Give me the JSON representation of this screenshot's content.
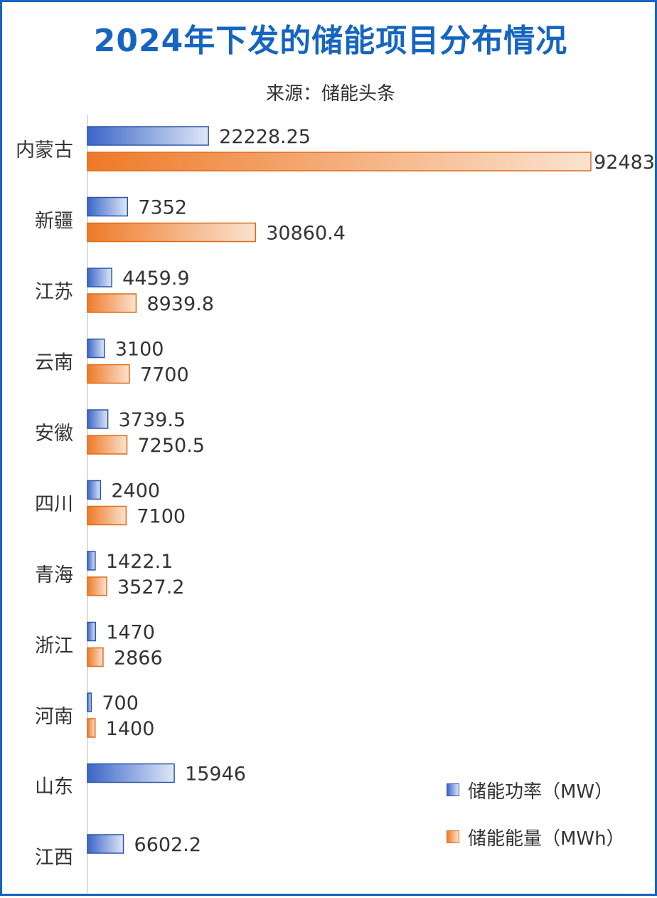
{
  "chart_data": {
    "type": "bar",
    "orientation": "horizontal",
    "title": "2024年下发的储能项目分布情况",
    "subtitle": "来源：储能头条",
    "categories": [
      "内蒙古",
      "新疆",
      "江苏",
      "云南",
      "安徽",
      "四川",
      "青海",
      "浙江",
      "河南",
      "山东",
      "江西"
    ],
    "series": [
      {
        "name": "储能功率（MW）",
        "values": [
          22228.25,
          7352,
          4459.9,
          3100,
          3739.5,
          2400,
          1422.1,
          1470,
          700,
          15946,
          6602.2
        ],
        "labels": [
          "22228.25",
          "7352",
          "4459.9",
          "3100",
          "3739.5",
          "2400",
          "1422.1",
          "1470",
          "700",
          "15946",
          "6602.2"
        ],
        "color": "#4472c4"
      },
      {
        "name": "储能能量（MWh）",
        "values": [
          92483,
          30860.4,
          8939.8,
          7700,
          7250.5,
          7100,
          3527.2,
          2866,
          1400,
          null,
          null
        ],
        "labels": [
          "92483",
          "30860.4",
          "8939.8",
          "7700",
          "7250.5",
          "7100",
          "3527.2",
          "2866",
          "1400",
          "",
          ""
        ],
        "color": "#ed7d31"
      }
    ],
    "xlim": [
      0,
      92483
    ],
    "grid": false,
    "legend_position": "bottom-right"
  }
}
